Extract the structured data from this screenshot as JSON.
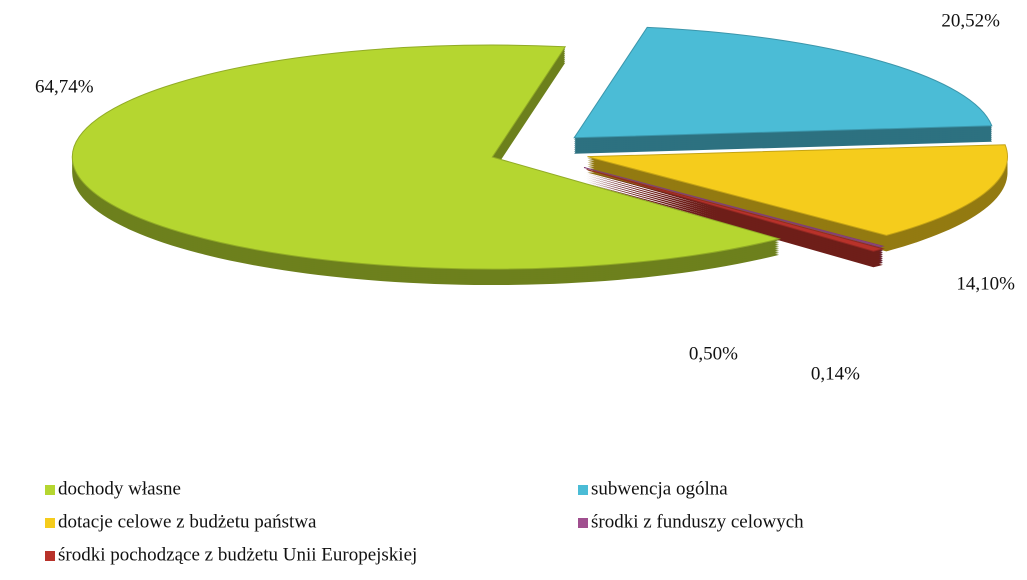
{
  "chart_data": {
    "type": "pie",
    "categories": [
      "dochody własne",
      "subwencja ogólna",
      "dotacje celowe z budżetu państwa",
      "środki z funduszy celowych",
      "środki pochodzące z budżetu Unii Europejskiej"
    ],
    "values": [
      64.74,
      20.52,
      14.1,
      0.14,
      0.5
    ],
    "value_labels": [
      "64,74%",
      "20,52%",
      "14,10%",
      "0,14%",
      "0,50%"
    ],
    "colors": [
      "#b5d630",
      "#4bbcd6",
      "#f5cc1c",
      "#a04f8f",
      "#b8322a"
    ]
  }
}
